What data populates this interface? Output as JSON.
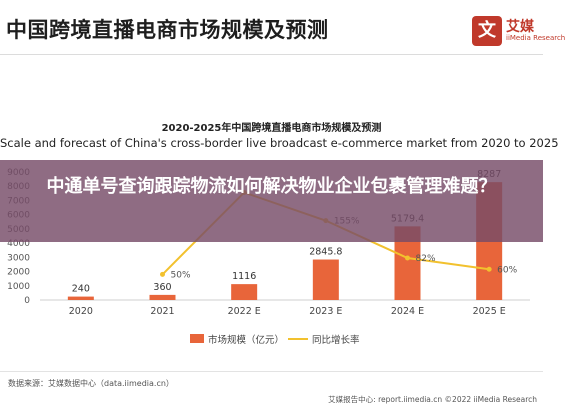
{
  "header": {
    "title": "中国跨境直播电商市场规模及预测",
    "logo": {
      "mark": "文",
      "name": "艾媒",
      "sub": "iiMedia Research"
    }
  },
  "overlay": {
    "text": "中通单号查询跟踪物流如何解决物业企业包裹管理难题？"
  },
  "chart_data": {
    "type": "bar",
    "title": "2020-2025年中国跨境直播电商市场规模及预测",
    "subtitle": "Scale and forecast of China's cross-border live broadcast e-commerce market from 2020 to 2025",
    "categories": [
      "2020",
      "2021",
      "2022 E",
      "2023 E",
      "2024 E",
      "2025 E"
    ],
    "series": [
      {
        "name": "市场规模（亿元）",
        "type": "bar",
        "color": "#e8653a",
        "values": [
          240,
          360,
          1116,
          2845.8,
          5179.4,
          8287
        ],
        "labels": [
          "240",
          "360",
          "1116",
          "2845.8",
          "5179.4",
          "8287"
        ]
      },
      {
        "name": "同比增长率",
        "type": "line",
        "color": "#f2c12e",
        "values": [
          null,
          50,
          210,
          155,
          82,
          60
        ],
        "labels": [
          "",
          "50%",
          "",
          "155%",
          "82%",
          "60%"
        ]
      }
    ],
    "y_ticks": [
      "0",
      "1000",
      "2000",
      "3000",
      "4000",
      "5000",
      "6000",
      "7000",
      "8000",
      "9000"
    ],
    "ylim": [
      0,
      9000
    ],
    "y2lim": [
      0,
      250
    ],
    "grid": false,
    "legend": "bottom"
  },
  "footer": {
    "source": "数据来源：艾媒数据中心（data.iimedia.cn）",
    "right": "艾媒报告中心: report.iimedia.cn   ©2022 iiMedia Research"
  }
}
